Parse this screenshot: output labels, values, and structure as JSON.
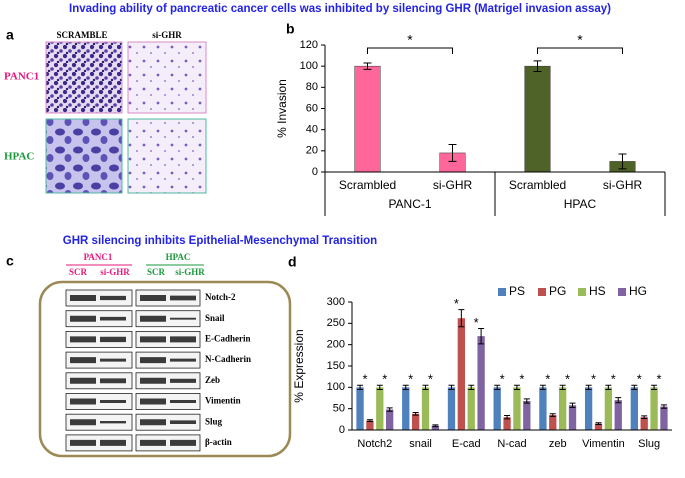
{
  "title": "Invading ability of  pancreatic cancer cells was inhibited by silencing GHR (Matrigel invasion assay)",
  "panel_a": {
    "label": "a",
    "columns": [
      "SCRAMBLE",
      "si-GHR"
    ],
    "rows": [
      "PANC1",
      "HPAC"
    ]
  },
  "emt_title": "GHR silencing  inhibits  Epithelial-Mesenchymal Transition",
  "panel_c": {
    "label": "c",
    "groups": [
      {
        "name": "PANC1",
        "lanes": [
          "SCR",
          "si-GHR"
        ]
      },
      {
        "name": "HPAC",
        "lanes": [
          "SCR",
          "si-GHR"
        ]
      }
    ],
    "proteins": [
      "Notch-2",
      "Snail",
      "E-Cadherin",
      "N-Cadherin",
      "Zeb",
      "Vimentin",
      "Slug",
      "β-actin"
    ]
  },
  "chart_data": [
    {
      "type": "bar",
      "label": "b",
      "y_label": "% Invasion",
      "categories": [
        "Scrambled",
        "si-GHR",
        "Scrambled",
        "si-GHR"
      ],
      "groups": [
        "PANC-1",
        "HPAC"
      ],
      "values": [
        100,
        18,
        100,
        10
      ],
      "errors": [
        3,
        8,
        5,
        7
      ],
      "colors": [
        "#ff6699",
        "#ff6699",
        "#4f6228",
        "#4f6228"
      ],
      "ylim": [
        0,
        120
      ],
      "yticks": [
        0,
        20,
        40,
        60,
        80,
        100,
        120
      ],
      "significance": [
        {
          "label": "*",
          "between": [
            0,
            1
          ]
        },
        {
          "label": "*",
          "between": [
            2,
            3
          ]
        }
      ]
    },
    {
      "type": "grouped_bar",
      "label": "d",
      "y_label": "% Expression",
      "categories": [
        "Notch2",
        "snail",
        "E-cad",
        "N-cad",
        "zeb",
        "Vimentin",
        "Slug"
      ],
      "series": [
        {
          "name": "PS",
          "color": "#4f81bd",
          "values": [
            100,
            100,
            100,
            100,
            100,
            100,
            100
          ],
          "errors": [
            5,
            5,
            5,
            5,
            5,
            5,
            5
          ]
        },
        {
          "name": "PG",
          "color": "#c0504d",
          "values": [
            22,
            38,
            262,
            30,
            35,
            15,
            30
          ],
          "errors": [
            2,
            3,
            20,
            4,
            3,
            2,
            3
          ]
        },
        {
          "name": "HS",
          "color": "#9bbb59",
          "values": [
            100,
            100,
            100,
            100,
            100,
            100,
            100
          ],
          "errors": [
            5,
            5,
            5,
            5,
            5,
            5,
            5
          ]
        },
        {
          "name": "HG",
          "color": "#8064a2",
          "values": [
            48,
            10,
            220,
            68,
            58,
            70,
            55
          ],
          "errors": [
            4,
            2,
            18,
            5,
            5,
            6,
            4
          ]
        }
      ],
      "ylim": [
        0,
        300
      ],
      "yticks": [
        0,
        50,
        100,
        150,
        200,
        250,
        300
      ],
      "legend": "top",
      "significance": [
        {
          "label": "*",
          "category": 0,
          "between": [
            0,
            1
          ]
        },
        {
          "label": "*",
          "category": 0,
          "between": [
            2,
            3
          ]
        },
        {
          "label": "*",
          "category": 1,
          "between": [
            0,
            1
          ]
        },
        {
          "label": "*",
          "category": 1,
          "between": [
            2,
            3
          ]
        },
        {
          "label": "*",
          "category": 2,
          "between": [
            0,
            1
          ]
        },
        {
          "label": "*",
          "category": 2,
          "between": [
            2,
            3
          ]
        },
        {
          "label": "*",
          "category": 3,
          "between": [
            0,
            1
          ]
        },
        {
          "label": "*",
          "category": 3,
          "between": [
            2,
            3
          ]
        },
        {
          "label": "*",
          "category": 4,
          "between": [
            0,
            1
          ]
        },
        {
          "label": "*",
          "category": 4,
          "between": [
            2,
            3
          ]
        },
        {
          "label": "*",
          "category": 5,
          "between": [
            0,
            1
          ]
        },
        {
          "label": "*",
          "category": 5,
          "between": [
            2,
            3
          ]
        },
        {
          "label": "*",
          "category": 6,
          "between": [
            0,
            1
          ]
        },
        {
          "label": "*",
          "category": 6,
          "between": [
            2,
            3
          ]
        }
      ]
    }
  ]
}
